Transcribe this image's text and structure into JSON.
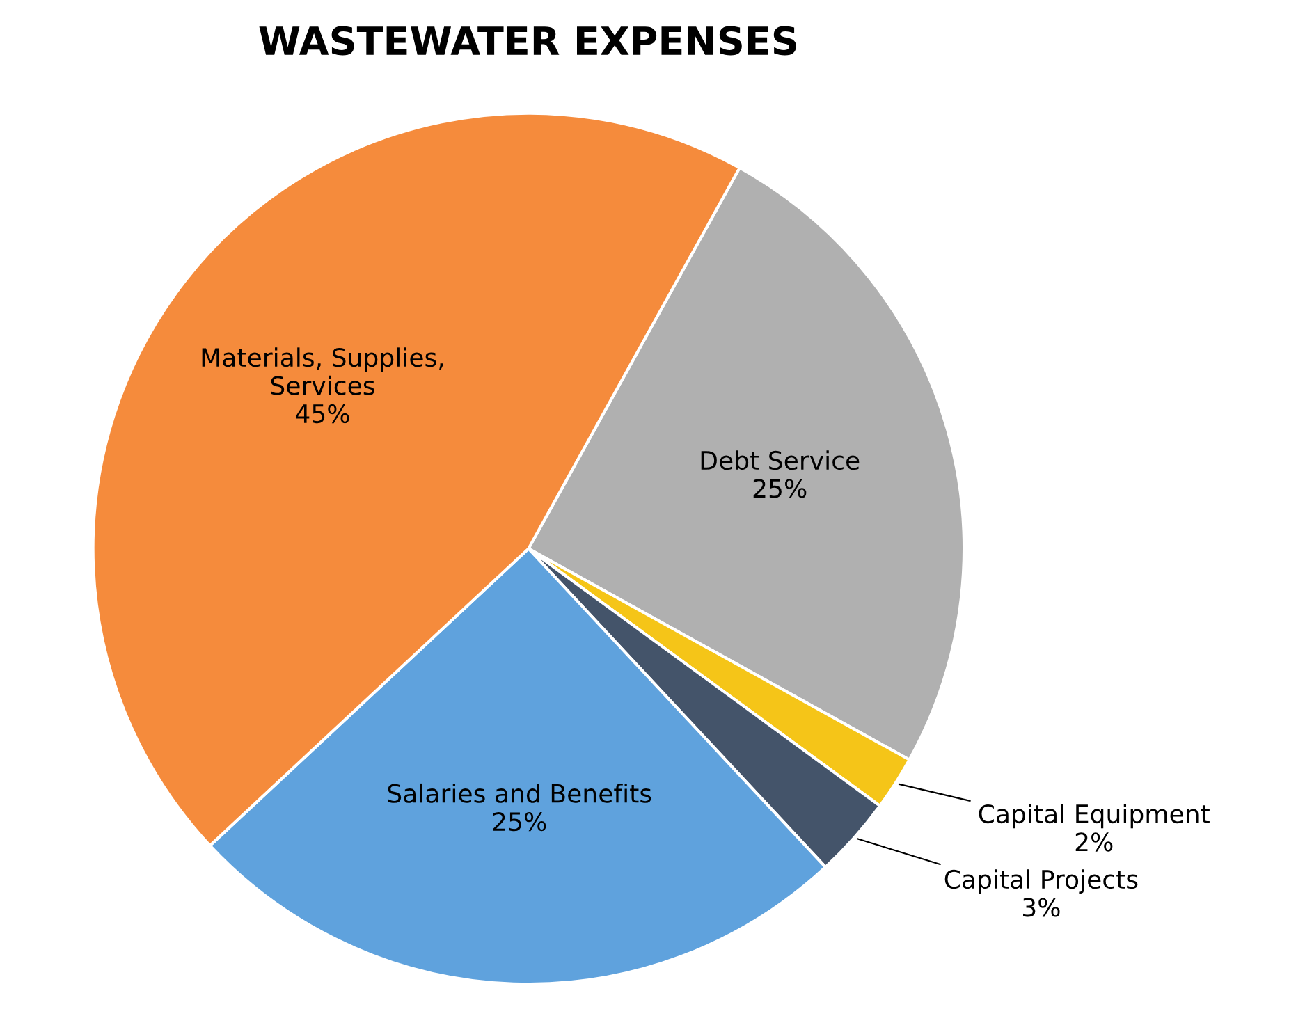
{
  "chart_data": {
    "type": "pie",
    "title": "WASTEWATER EXPENSES",
    "categories": [
      "Debt Service",
      "Capital Equipment",
      "Capital Projects",
      "Salaries and Benefits",
      "Materials, Supplies,\nServices"
    ],
    "values": [
      25,
      2,
      3,
      25,
      45
    ],
    "value_labels": [
      "25%",
      "2%",
      "3%",
      "25%",
      "45%"
    ],
    "colors": [
      "#b0b0b0",
      "#f5c518",
      "#44546a",
      "#5fa2dd",
      "#f58b3c"
    ]
  }
}
